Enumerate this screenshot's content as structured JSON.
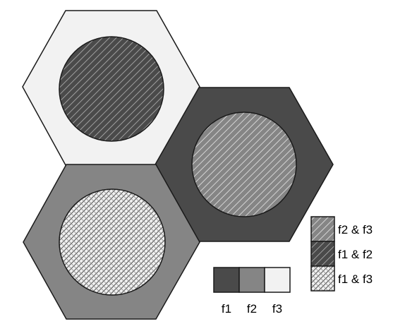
{
  "colors": {
    "f1": "#4a4a4a",
    "f2": "#858585",
    "f3": "#f2f2f2",
    "outline": "#1a1a1a",
    "hatch_light": "#e0e0e0",
    "hatch_dark": "#2a2a2a"
  },
  "cells": [
    {
      "name": "top",
      "band": "f3",
      "center_overlap": "f1 & f2"
    },
    {
      "name": "right",
      "band": "f1",
      "center_overlap": "f2 & f3"
    },
    {
      "name": "bottom-left",
      "band": "f2",
      "center_overlap": "f1 & f3"
    }
  ],
  "band_key": {
    "items": [
      {
        "label": "f1",
        "fill": "#4a4a4a"
      },
      {
        "label": "f2",
        "fill": "#858585"
      },
      {
        "label": "f3",
        "fill": "#f2f2f2"
      }
    ]
  },
  "overlap_legend": {
    "items": [
      {
        "label": "f2 & f3",
        "pattern": "hatch-f2f3"
      },
      {
        "label": "f1 & f2",
        "pattern": "hatch-f1f2"
      },
      {
        "label": "f1 & f3",
        "pattern": "hatch-f1f3"
      }
    ]
  }
}
